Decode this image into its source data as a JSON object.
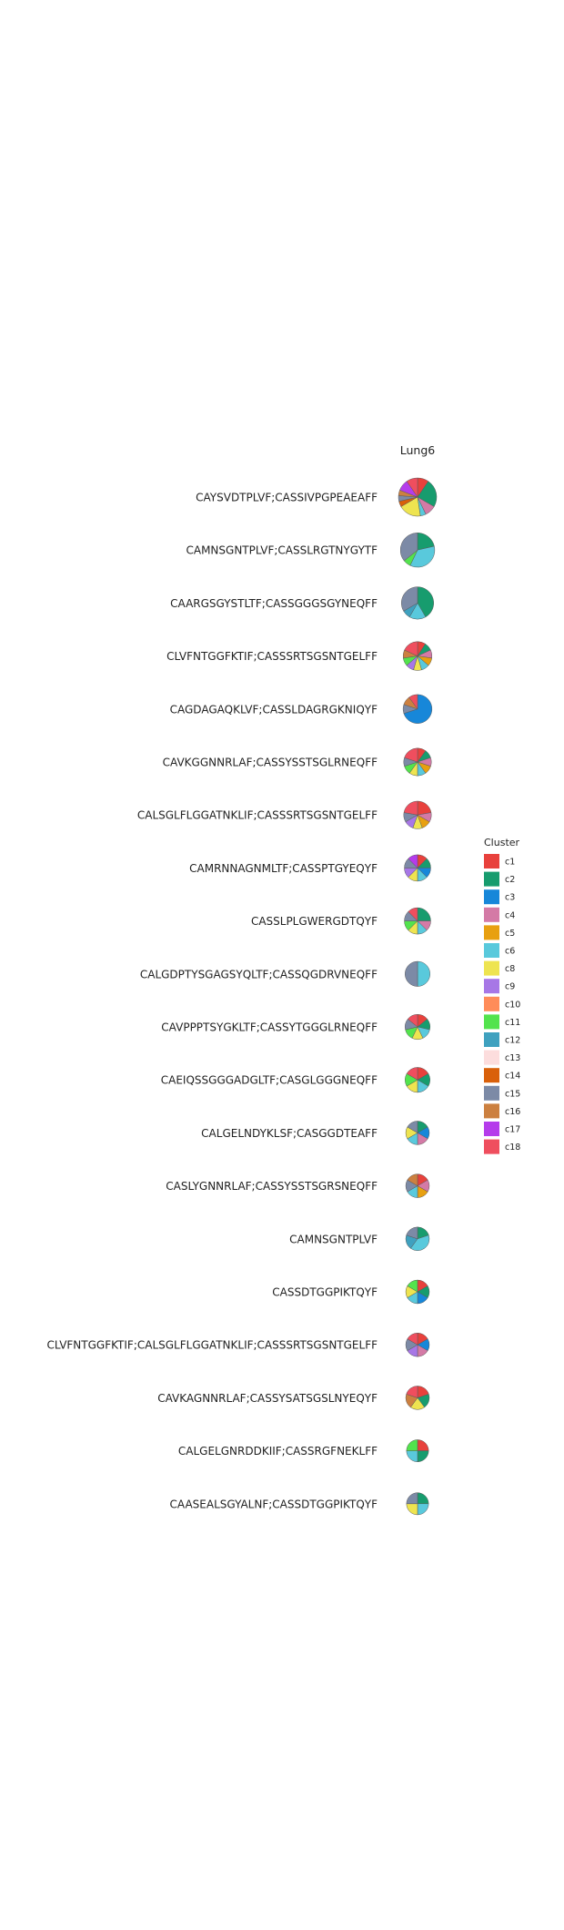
{
  "chart_data": {
    "type": "pie",
    "column_title": "Lung6",
    "legend": {
      "title": "Cluster",
      "placement": "right",
      "items": [
        {
          "name": "c1",
          "color": "#E8413C"
        },
        {
          "name": "c2",
          "color": "#179C6E"
        },
        {
          "name": "c3",
          "color": "#1787D9"
        },
        {
          "name": "c4",
          "color": "#D47AA6"
        },
        {
          "name": "c5",
          "color": "#E8A010"
        },
        {
          "name": "c6",
          "color": "#59C9DC"
        },
        {
          "name": "c8",
          "color": "#EEE450"
        },
        {
          "name": "c9",
          "color": "#A777E6"
        },
        {
          "name": "c10",
          "color": "#FF8C59"
        },
        {
          "name": "c11",
          "color": "#53E34D"
        },
        {
          "name": "c12",
          "color": "#3FA1BF"
        },
        {
          "name": "c13",
          "color": "#FCDDDD"
        },
        {
          "name": "c14",
          "color": "#D9600A"
        },
        {
          "name": "c15",
          "color": "#7C8AA6"
        },
        {
          "name": "c16",
          "color": "#CC8040"
        },
        {
          "name": "c17",
          "color": "#B53CEB"
        },
        {
          "name": "c18",
          "color": "#EF4E5E"
        }
      ]
    },
    "rows": [
      {
        "label": "CAYSVDTPLVF;CASSIVPGPEAEAFF",
        "size": 21,
        "slices": {
          "c1": 2,
          "c2": 5,
          "c4": 2,
          "c6": 1,
          "c8": 4,
          "c14": 1,
          "c15": 1,
          "c16": 1,
          "c17": 2,
          "c18": 2
        }
      },
      {
        "label": "CAMNSGNTPLVF;CASSLRGTNYGYTF",
        "size": 17,
        "slices": {
          "c2": 3,
          "c6": 5,
          "c11": 1,
          "c15": 5
        }
      },
      {
        "label": "CAARGSGYSTLTF;CASSGGGSGYNEQFF",
        "size": 15,
        "slices": {
          "c2": 5,
          "c6": 2,
          "c12": 1,
          "c15": 4
        }
      },
      {
        "label": "CLVFNTGGFKTIF;CASSSRTSGSNTGELFF",
        "size": 12,
        "slices": {
          "c1": 1,
          "c2": 1,
          "c4": 1,
          "c5": 1,
          "c6": 1,
          "c8": 1,
          "c9": 1,
          "c11": 1,
          "c16": 1,
          "c18": 2
        }
      },
      {
        "label": "CAGDAGAQKLVF;CASSLDAGRGKNIQYF",
        "size": 12,
        "slices": {
          "c3": 7,
          "c15": 1,
          "c16": 1,
          "c18": 1
        }
      },
      {
        "label": "CAVKGGNNRLAF;CASSYSSTSGLRNEQFF",
        "size": 11,
        "slices": {
          "c1": 1,
          "c2": 1,
          "c4": 1,
          "c5": 1,
          "c6": 1,
          "c8": 1,
          "c11": 1,
          "c15": 1,
          "c18": 2
        }
      },
      {
        "label": "CALSGLFLGGATNKLIF;CASSSRTSGSNTGELFF",
        "size": 11,
        "slices": {
          "c1": 2,
          "c4": 1,
          "c5": 1,
          "c8": 1,
          "c9": 1,
          "c15": 1,
          "c18": 2
        }
      },
      {
        "label": "CAMRNNAGNMLTF;CASSPTGYEQYF",
        "size": 10,
        "slices": {
          "c1": 1,
          "c2": 1,
          "c3": 1,
          "c6": 1,
          "c8": 1,
          "c9": 1,
          "c15": 1,
          "c17": 1
        }
      },
      {
        "label": "CASSLPLGWERGDTQYF",
        "size": 10,
        "slices": {
          "c2": 2,
          "c4": 1,
          "c6": 1,
          "c8": 1,
          "c11": 1,
          "c15": 1,
          "c18": 1
        }
      },
      {
        "label": "CALGDPTYSGAGSYQLTF;CASSQGDRVNEQFF",
        "size": 9,
        "slices": {
          "c6": 2,
          "c15": 2
        }
      },
      {
        "label": "CAVPPPTSYGKLTF;CASSYTGGGLRNEQFF",
        "size": 9,
        "slices": {
          "c1": 1,
          "c2": 1,
          "c6": 1,
          "c8": 1,
          "c11": 1,
          "c15": 1,
          "c18": 1
        }
      },
      {
        "label": "CAEIQSSGGGADGLTF;CASGLGGGNEQFF",
        "size": 9,
        "slices": {
          "c1": 1,
          "c2": 1,
          "c6": 1,
          "c8": 1,
          "c11": 1,
          "c18": 1
        }
      },
      {
        "label": "CALGELNDYKLSF;CASGGDTEAFF",
        "size": 8,
        "slices": {
          "c2": 1,
          "c3": 1,
          "c4": 1,
          "c6": 1,
          "c8": 1,
          "c15": 1
        }
      },
      {
        "label": "CASLYGNNRLAF;CASSYSSTSGRSNEQFF",
        "size": 8,
        "slices": {
          "c1": 1,
          "c4": 1,
          "c5": 1,
          "c6": 1,
          "c15": 1,
          "c16": 1
        }
      },
      {
        "label": "CAMNSGNTPLVF",
        "size": 8,
        "slices": {
          "c2": 1,
          "c6": 2,
          "c12": 1,
          "c15": 1
        }
      },
      {
        "label": "CASSDTGGPIKTQYF",
        "size": 8,
        "slices": {
          "c1": 1,
          "c2": 1,
          "c3": 1,
          "c6": 1,
          "c8": 1,
          "c11": 1
        }
      },
      {
        "label": "CLVFNTGGFKTIF;CALSGLFLGGATNKLIF;CASSSRTSGSNTGELFF",
        "size": 8,
        "slices": {
          "c1": 1,
          "c3": 1,
          "c4": 1,
          "c9": 1,
          "c15": 1,
          "c18": 1
        }
      },
      {
        "label": "CAVKAGNNRLAF;CASSYSATSGSLNYEQYF",
        "size": 8,
        "slices": {
          "c1": 1,
          "c2": 1,
          "c8": 1,
          "c16": 1,
          "c18": 1
        }
      },
      {
        "label": "CALGELGNRDDKIIF;CASSRGFNEKLFF",
        "size": 7,
        "slices": {
          "c1": 1,
          "c2": 1,
          "c6": 1,
          "c11": 1
        }
      },
      {
        "label": "CAASEALSGYALNF;CASSDTGGPIKTQYF",
        "size": 7,
        "slices": {
          "c2": 1,
          "c6": 1,
          "c8": 1,
          "c15": 1
        }
      }
    ]
  }
}
